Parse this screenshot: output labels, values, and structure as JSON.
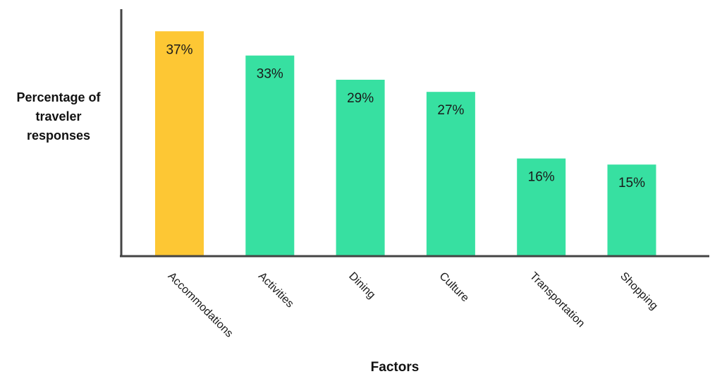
{
  "chart_data": {
    "type": "bar",
    "categories": [
      "Accommodations",
      "Activities",
      "Dining",
      "Culture",
      "Transportation",
      "Shopping"
    ],
    "values": [
      37,
      33,
      29,
      27,
      16,
      15
    ],
    "value_labels": [
      "37%",
      "33%",
      "29%",
      "27%",
      "16%",
      "15%"
    ],
    "ylabel_lines": [
      "Percentage of",
      "traveler",
      "responses"
    ],
    "xlabel": "Factors",
    "ylim": [
      0,
      41
    ],
    "grid": false,
    "legend": "none",
    "colors": {
      "highlight": "#FDC734",
      "bar": "#37E0A1",
      "axis": "#444444"
    }
  }
}
